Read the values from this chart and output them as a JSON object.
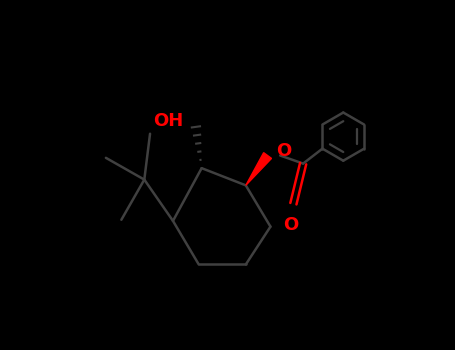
{
  "background_color": "#000000",
  "bond_color": "#404040",
  "oxygen_color": "#ff0000",
  "figsize": [
    4.55,
    3.5
  ],
  "dpi": 100,
  "xlim": [
    -2.5,
    3.5
  ],
  "ylim": [
    -2.2,
    2.5
  ],
  "OH_label": "OH",
  "O_ester_label": "O",
  "O_carbonyl_label": "O"
}
